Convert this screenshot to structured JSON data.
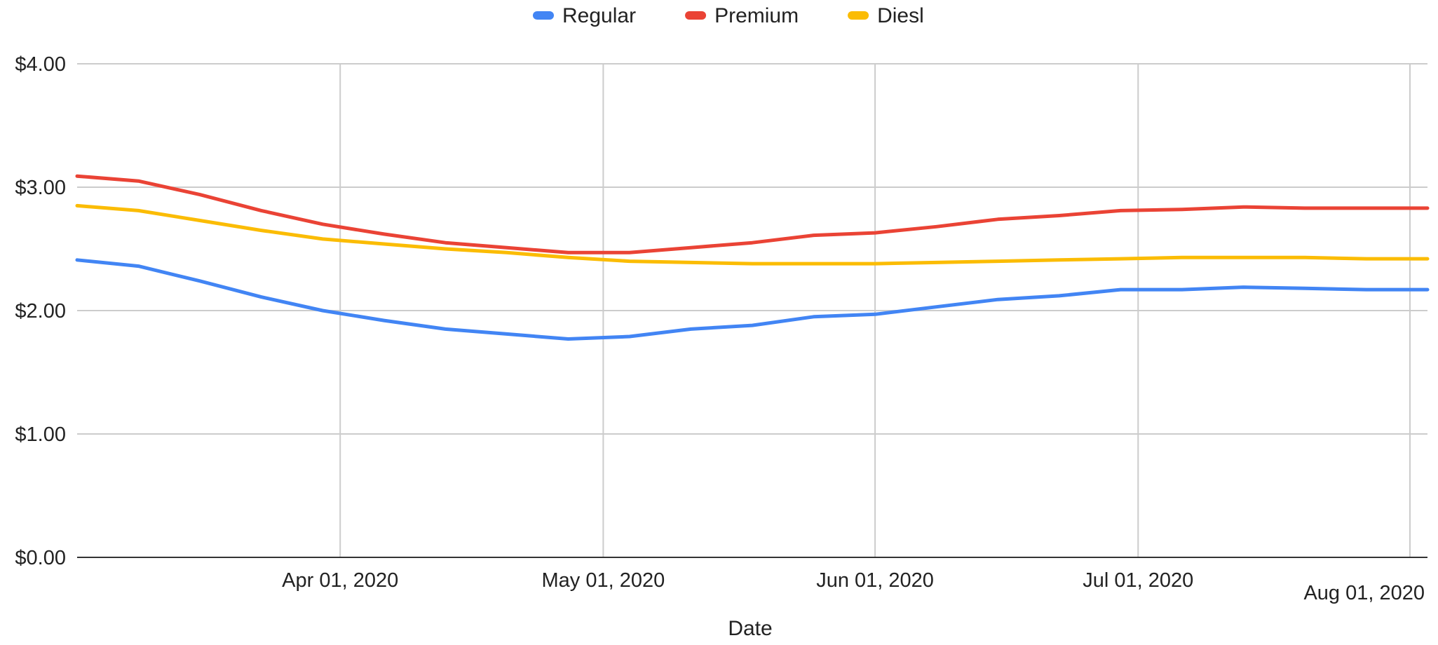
{
  "chart_data": {
    "type": "line",
    "xlabel": "Date",
    "ylabel": "",
    "ylim": [
      0,
      4
    ],
    "y_ticks": [
      {
        "value": 0,
        "label": "$0.00"
      },
      {
        "value": 1,
        "label": "$1.00"
      },
      {
        "value": 2,
        "label": "$2.00"
      },
      {
        "value": 3,
        "label": "$3.00"
      },
      {
        "value": 4,
        "label": "$4.00"
      }
    ],
    "x_ticks": [
      {
        "value": "2020-04-01",
        "label": "Apr 01, 2020"
      },
      {
        "value": "2020-05-01",
        "label": "May 01, 2020"
      },
      {
        "value": "2020-06-01",
        "label": "Jun 01, 2020"
      },
      {
        "value": "2020-07-01",
        "label": "Jul 01, 2020"
      },
      {
        "value": "2020-08-01",
        "label": "Aug 01, 2020"
      }
    ],
    "xlim": [
      "2020-03-02",
      "2020-08-03"
    ],
    "grid": true,
    "legend_position": "top-center",
    "x": [
      "2020-03-02",
      "2020-03-09",
      "2020-03-16",
      "2020-03-23",
      "2020-03-30",
      "2020-04-06",
      "2020-04-13",
      "2020-04-20",
      "2020-04-27",
      "2020-05-04",
      "2020-05-11",
      "2020-05-18",
      "2020-05-25",
      "2020-06-01",
      "2020-06-08",
      "2020-06-15",
      "2020-06-22",
      "2020-06-29",
      "2020-07-06",
      "2020-07-13",
      "2020-07-20",
      "2020-07-27",
      "2020-08-03"
    ],
    "series": [
      {
        "name": "Regular",
        "color": "#4285f4",
        "values": [
          2.41,
          2.36,
          2.24,
          2.11,
          2.0,
          1.92,
          1.85,
          1.81,
          1.77,
          1.79,
          1.85,
          1.88,
          1.95,
          1.97,
          2.03,
          2.09,
          2.12,
          2.17,
          2.17,
          2.19,
          2.18,
          2.17,
          2.17
        ]
      },
      {
        "name": "Premium",
        "color": "#ea4335",
        "values": [
          3.09,
          3.05,
          2.94,
          2.81,
          2.7,
          2.62,
          2.55,
          2.51,
          2.47,
          2.47,
          2.51,
          2.55,
          2.61,
          2.63,
          2.68,
          2.74,
          2.77,
          2.81,
          2.82,
          2.84,
          2.83,
          2.83,
          2.83
        ]
      },
      {
        "name": "Diesl",
        "color": "#fbbc04",
        "values": [
          2.85,
          2.81,
          2.73,
          2.65,
          2.58,
          2.54,
          2.5,
          2.47,
          2.43,
          2.4,
          2.39,
          2.38,
          2.38,
          2.38,
          2.39,
          2.4,
          2.41,
          2.42,
          2.43,
          2.43,
          2.43,
          2.42,
          2.42
        ]
      }
    ]
  }
}
